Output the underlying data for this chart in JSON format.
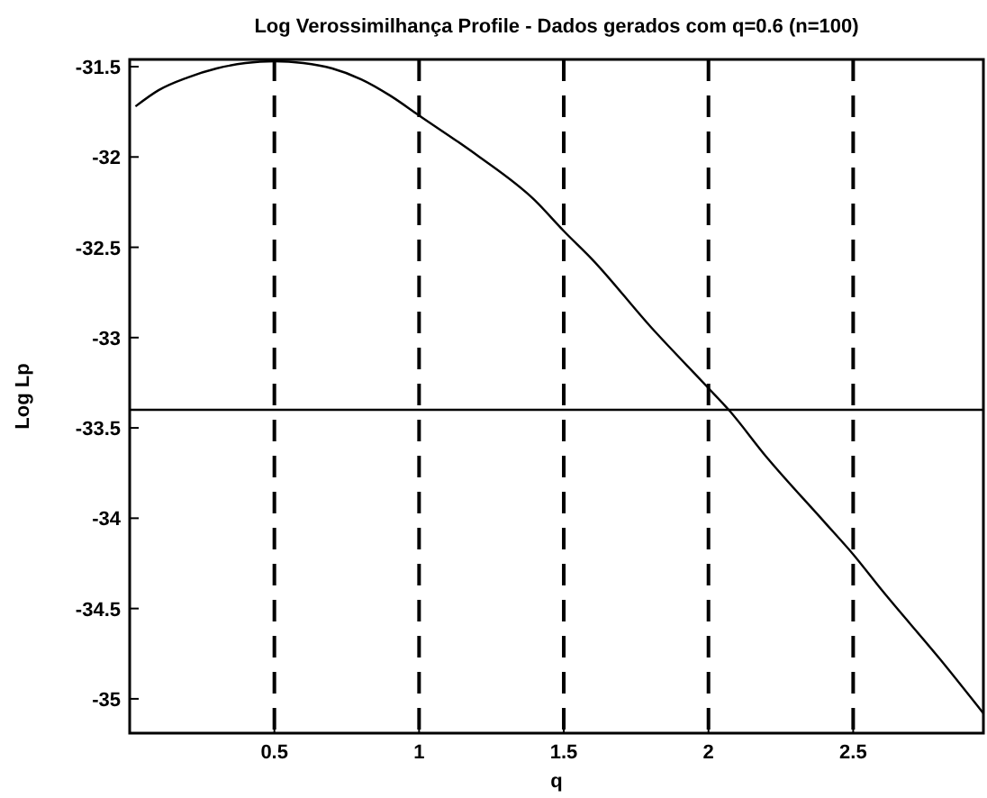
{
  "chart_data": {
    "type": "line",
    "title": "Log Verossimilhança Profile - Dados gerados com q=0.6 (n=100)",
    "xlabel": "q",
    "ylabel": "Log Lp",
    "x": [
      0.02,
      0.1,
      0.2,
      0.3,
      0.4,
      0.5,
      0.6,
      0.7,
      0.8,
      0.9,
      1.0,
      1.2,
      1.4,
      1.5,
      1.6,
      1.8,
      2.0,
      2.07,
      2.2,
      2.4,
      2.5,
      2.6,
      2.8,
      2.95
    ],
    "series": [
      {
        "color": "#000000",
        "values": [
          -31.72,
          -31.63,
          -31.56,
          -31.51,
          -31.48,
          -31.47,
          -31.48,
          -31.51,
          -31.57,
          -31.66,
          -31.77,
          -31.99,
          -32.24,
          -32.41,
          -32.57,
          -32.94,
          -33.28,
          -33.4,
          -33.66,
          -34.02,
          -34.2,
          -34.4,
          -34.78,
          -35.08
        ]
      }
    ],
    "xlim": [
      0,
      2.95
    ],
    "ylim": [
      -35.19,
      -31.46
    ],
    "xticks": [
      0.5,
      1,
      1.5,
      2,
      2.5
    ],
    "yticks": [
      -35,
      -34.5,
      -34,
      -33.5,
      -33,
      -32.5,
      -32,
      -31.5
    ],
    "ref_lines": [
      {
        "axis": "x",
        "value": 0.5,
        "line_style": "dashed"
      },
      {
        "axis": "x",
        "value": 1,
        "line_style": "dashed"
      },
      {
        "axis": "x",
        "value": 1.5,
        "line_style": "dashed"
      },
      {
        "axis": "x",
        "value": 2,
        "line_style": "dashed"
      },
      {
        "axis": "x",
        "value": 2.5,
        "line_style": "dashed"
      },
      {
        "axis": "y",
        "value": -33.4,
        "line_style": "solid"
      }
    ],
    "grid": false,
    "line_style": "solid"
  }
}
